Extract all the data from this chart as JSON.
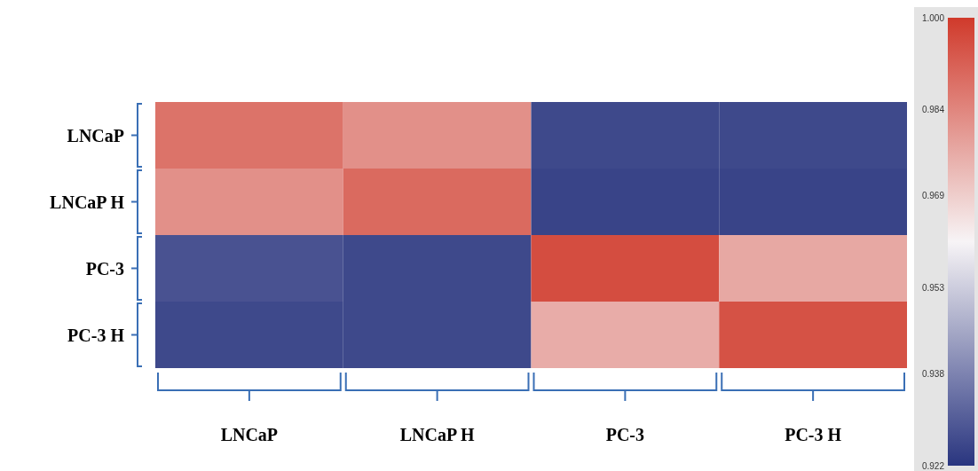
{
  "chart_data": {
    "type": "heatmap",
    "categories": [
      "LNCaP",
      "LNCaP H",
      "PC-3",
      "PC-3 H"
    ],
    "y_categories": [
      "LNCaP",
      "LNCaP H",
      "PC-3",
      "PC-3 H"
    ],
    "cells": [
      [
        0.988,
        0.982,
        0.926,
        0.926
      ],
      [
        0.982,
        0.99,
        0.925,
        0.925
      ],
      [
        0.928,
        0.926,
        0.996,
        0.977
      ],
      [
        0.926,
        0.926,
        0.976,
        0.995
      ]
    ],
    "clim": [
      0.922,
      1.0
    ],
    "cticks": [
      {
        "value": 0.922,
        "label": "0.922"
      },
      0.938,
      0.953,
      0.969,
      0.984,
      {
        "value": 1.0,
        "label": "1.000"
      }
    ]
  }
}
